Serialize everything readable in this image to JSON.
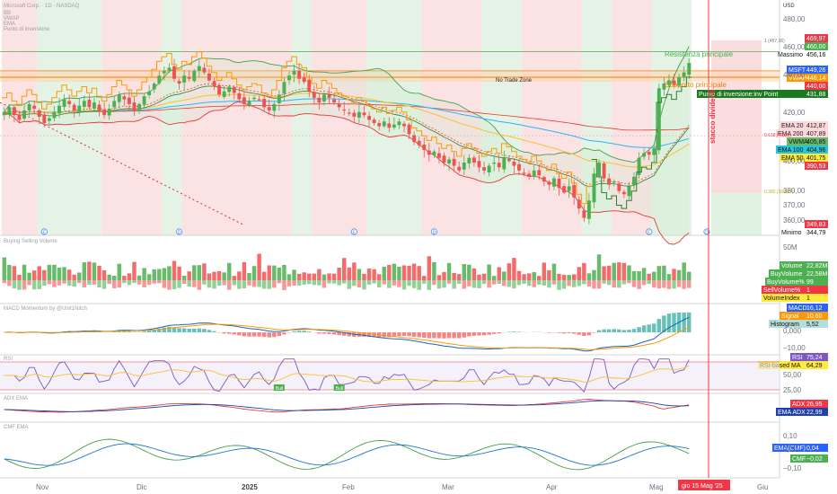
{
  "header": {
    "symbol": "Microsoft Corp. · 1D · NASDAQ",
    "currency": "USD",
    "indicators": [
      "BB",
      "VWAP",
      "EMA",
      "Punto di inversione"
    ]
  },
  "pane_titles": {
    "volume": "Buying Selling Volume",
    "macd": "MACD Momentum by @Unit1Nitch",
    "rsi": "RSI",
    "adx": "ADX EMA",
    "cmf": "CMF EMA"
  },
  "colors": {
    "up": "#4caf50",
    "down": "#f05252",
    "bg_green": "#e4f3e5",
    "bg_red": "#fbe3e4",
    "cursor": "#f23645",
    "supp": "#f57c00",
    "res": "#4caf50",
    "bb": "#43a047",
    "ema20": "#f44336",
    "ema50": "#fbc02d",
    "ema100": "#29b6f6",
    "ema200": "#e53935",
    "vwma": "#2e7d32",
    "vwap": "#ff9800",
    "macd": "#1565c0",
    "signal": "#ff9800",
    "rsi": "#7e57c2",
    "rsima": "#fbc02d",
    "adx": "#e53935",
    "ema_adx": "#1e40af",
    "cmf": "#43a047",
    "ema_cmf": "#1976d2"
  },
  "annotations": {
    "resistance": "Resistenza principale",
    "support": "Supporto principale",
    "no_trade": "No Trade Zone",
    "dividend": "stacco dividenti",
    "fib_top": "1 (457,36)",
    "fib_mid": "0.618 (403,0)",
    "fib_low": "0.382 (369,57)",
    "event_e": "E",
    "event_d": "D"
  },
  "price_axis": {
    "ticks": [
      "480,00",
      "460,00",
      "440,00",
      "420,00",
      "400,00",
      "380,00",
      "370,00",
      "360,00",
      "350,00"
    ],
    "labels": [
      {
        "text": "469,97",
        "kind": "red"
      },
      {
        "text": "460,00",
        "kind": "green"
      },
      {
        "text": "Massimo",
        "value": "456,16",
        "kind": "plain"
      },
      {
        "text": "MSFT",
        "value": "449,26",
        "kind": "blue"
      },
      {
        "text": "VWAP",
        "value": "446,14",
        "kind": "orange"
      },
      {
        "text": "440,00",
        "kind": "red"
      },
      {
        "text": "Punto di inversione:inv Point",
        "value": "431,88",
        "kind": "darkgreen"
      },
      {
        "text": "EMA 20",
        "value": "412,87",
        "kind": "pink"
      },
      {
        "text": "EMA 200",
        "value": "407,89",
        "kind": "pink"
      },
      {
        "text": "VWMA",
        "value": "405,85",
        "kind": "lightgreen"
      },
      {
        "text": "EMA 100",
        "value": "404,96",
        "kind": "cyan"
      },
      {
        "text": "EMA 50",
        "value": "401,75",
        "kind": "yellow"
      },
      {
        "text": "390,53",
        "kind": "red"
      },
      {
        "text": "349,83",
        "kind": "red"
      },
      {
        "text": "Minimo",
        "value": "344,79",
        "kind": "plain"
      }
    ]
  },
  "volume_axis": {
    "ticks": [
      "50M"
    ],
    "labels": [
      {
        "text": "Volume",
        "value": "22,82M",
        "kind": "green"
      },
      {
        "text": "BuyVolume",
        "value": "22,58M",
        "kind": "green"
      },
      {
        "text": "BuyVolume%",
        "value": "99",
        "kind": "green"
      },
      {
        "text": "SellVolume%",
        "value": "1",
        "kind": "red"
      },
      {
        "text": "VolumeIndex",
        "value": "1",
        "kind": "yellow"
      }
    ]
  },
  "macd_axis": {
    "ticks": [
      "0,000",
      "−10,00"
    ],
    "labels": [
      {
        "text": "MACD",
        "value": "16,12",
        "kind": "blue"
      },
      {
        "text": "Signal",
        "value": "10,60",
        "kind": "orange"
      },
      {
        "text": "Histogram",
        "value": "5,52",
        "kind": "teal"
      }
    ]
  },
  "rsi_axis": {
    "ticks": [
      "50,00",
      "25,00"
    ],
    "labels": [
      {
        "text": "RSI",
        "value": "75,24",
        "kind": "purple"
      },
      {
        "text": "RSI-based MA",
        "value": "64,29",
        "kind": "yellow"
      }
    ],
    "signals": [
      "Bull",
      "Bull"
    ]
  },
  "adx_axis": {
    "ticks": [],
    "labels": [
      {
        "text": "ADX",
        "value": "26,95",
        "kind": "red"
      },
      {
        "text": "EMA ADX",
        "value": "22,99",
        "kind": "navy"
      }
    ]
  },
  "cmf_axis": {
    "ticks": [
      "0,10",
      "0,00",
      "−0,10"
    ],
    "labels": [
      {
        "text": "EMA(CMF)",
        "value": "0,04",
        "kind": "blue"
      },
      {
        "text": "CMF",
        "value": "−0,02",
        "kind": "green"
      }
    ]
  },
  "time_axis": {
    "labels": [
      "Nov",
      "Dic",
      "2025",
      "Feb",
      "Mar",
      "Apr",
      "Mag",
      "Giu"
    ],
    "cursor_label": "gio 15 Mag '25"
  },
  "chart_data": {
    "type": "candlestick",
    "title": "Microsoft Corp. · 1D · NASDAQ",
    "ylim": [
      340,
      482
    ],
    "last_close": 449.26,
    "high": 456.16,
    "low": 344.79,
    "levels": {
      "resistance": 456.16,
      "support": 440.0,
      "no_trade_top": 444.0,
      "no_trade_bottom": 437.0,
      "fib_1": 457.36,
      "fib_0618": 403.0,
      "fib_0382": 369.57
    },
    "close": [
      418,
      421,
      416,
      413,
      419,
      423,
      420,
      415,
      411,
      414,
      418,
      422,
      426,
      423,
      419,
      422,
      425,
      421,
      424,
      419,
      416,
      420,
      425,
      429,
      426,
      423,
      419,
      423,
      428,
      431,
      436,
      441,
      444,
      446,
      439,
      436,
      441,
      439,
      444,
      447,
      443,
      438,
      434,
      429,
      431,
      434,
      430,
      426,
      423,
      425,
      427,
      426,
      421,
      419,
      423,
      429,
      437,
      441,
      444,
      439,
      437,
      431,
      427,
      424,
      429,
      427,
      424,
      421,
      419,
      417,
      415,
      418,
      416,
      413,
      411,
      409,
      412,
      408,
      410,
      412,
      409,
      404,
      399,
      397,
      394,
      391,
      393,
      389,
      386,
      388,
      384,
      381,
      386,
      389,
      386,
      383,
      381,
      384,
      386,
      383,
      389,
      387,
      384,
      381,
      379,
      377,
      381,
      378,
      374,
      372,
      376,
      370,
      367,
      371,
      364,
      357,
      351,
      362,
      379,
      386,
      376,
      372,
      374,
      368,
      366,
      371,
      377,
      389,
      392,
      391,
      395,
      433,
      436,
      438,
      435,
      440,
      443,
      449
    ],
    "series": [
      {
        "name": "EMA 20",
        "last": 412.87
      },
      {
        "name": "EMA 50",
        "last": 401.75
      },
      {
        "name": "EMA 100",
        "last": 404.96
      },
      {
        "name": "EMA 200",
        "last": 407.89
      },
      {
        "name": "VWMA",
        "last": 405.85
      },
      {
        "name": "VWAP",
        "last": 446.14
      },
      {
        "name": "Punto di inversione:inv Point",
        "last": 431.88
      }
    ],
    "volume_last": {
      "volume": "22,82M",
      "buy_volume": "22,58M",
      "buy_pct": 99,
      "sell_pct": 1,
      "volume_index": 1
    },
    "macd_last": {
      "macd": 16.12,
      "signal": 10.6,
      "histogram": 5.52
    },
    "rsi_last": {
      "rsi": 75.24,
      "rsi_ma": 64.29
    },
    "adx_last": {
      "adx": 26.95,
      "ema_adx": 22.99
    },
    "cmf_last": {
      "cmf": -0.02,
      "ema_cmf": 0.04
    }
  }
}
